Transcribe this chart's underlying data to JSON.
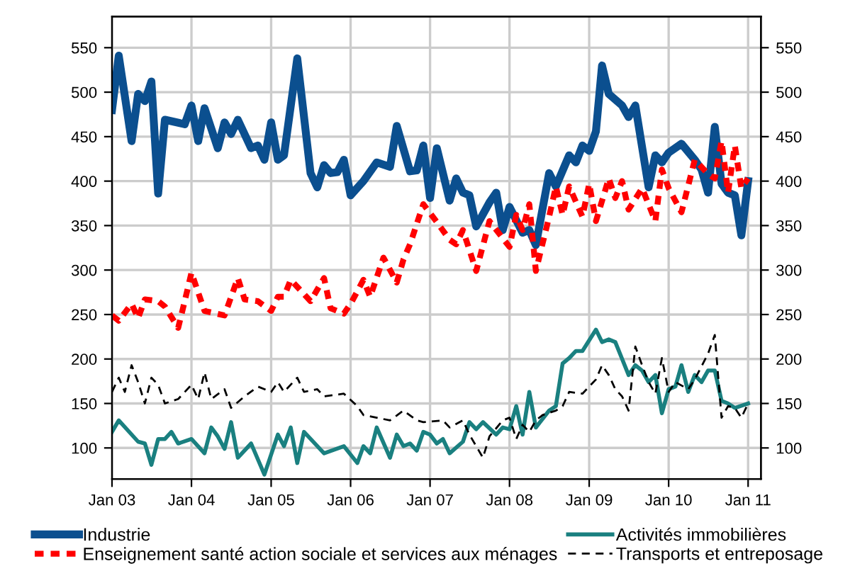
{
  "chart_data": {
    "type": "line",
    "xlim": [
      "2003-01-01",
      "2011-03-01"
    ],
    "xticks": [
      {
        "value": "2003-01-01",
        "label": "Jan 03"
      },
      {
        "value": "2004-01-01",
        "label": "Jan 04"
      },
      {
        "value": "2005-01-01",
        "label": "Jan 05"
      },
      {
        "value": "2006-01-01",
        "label": "Jan 06"
      },
      {
        "value": "2007-01-01",
        "label": "Jan 07"
      },
      {
        "value": "2008-01-01",
        "label": "Jan 08"
      },
      {
        "value": "2009-01-01",
        "label": "Jan 09"
      },
      {
        "value": "2010-01-01",
        "label": "Jan 10"
      },
      {
        "value": "2011-01-01",
        "label": "Jan 11"
      }
    ],
    "ylim": [
      65,
      585
    ],
    "yticks": [
      100,
      150,
      200,
      250,
      300,
      350,
      400,
      450,
      500,
      550
    ],
    "y2lim": [
      65,
      585
    ],
    "y2ticks": [
      100,
      150,
      200,
      250,
      300,
      350,
      400,
      450,
      500,
      550
    ],
    "grid": true,
    "legend": "bottom",
    "marker": "none",
    "series": [
      {
        "name": "Industrie",
        "color": "#0b4f8f",
        "line_style": "solid",
        "x": [
          "2003-01",
          "2003-02",
          "2003-04",
          "2003-05",
          "2003-06",
          "2003-07",
          "2003-08",
          "2003-09",
          "2003-12",
          "2004-01",
          "2004-02",
          "2004-03",
          "2004-05",
          "2004-06",
          "2004-07",
          "2004-08",
          "2004-10",
          "2004-11",
          "2004-12",
          "2005-01",
          "2005-02",
          "2005-03",
          "2005-05",
          "2005-07",
          "2005-08",
          "2005-09",
          "2005-10",
          "2005-11",
          "2005-12",
          "2006-01",
          "2006-03",
          "2006-05",
          "2006-07",
          "2006-08",
          "2006-10",
          "2006-11",
          "2006-12",
          "2007-01",
          "2007-02",
          "2007-04",
          "2007-05",
          "2007-06",
          "2007-07",
          "2007-08",
          "2007-10",
          "2007-11",
          "2007-12",
          "2008-01",
          "2008-03",
          "2008-04",
          "2008-05",
          "2008-07",
          "2008-08",
          "2008-10",
          "2008-11",
          "2008-12",
          "2009-01",
          "2009-02",
          "2009-03",
          "2009-04",
          "2009-06",
          "2009-07",
          "2009-08",
          "2009-10",
          "2009-11",
          "2009-12",
          "2010-01",
          "2010-03",
          "2010-05",
          "2010-06",
          "2010-07",
          "2010-08",
          "2010-09",
          "2010-10",
          "2010-11",
          "2010-12",
          "2011-01"
        ],
        "values": [
          480,
          541,
          445,
          498,
          490,
          512,
          386,
          469,
          464,
          485,
          445,
          482,
          437,
          466,
          453,
          469,
          437,
          440,
          424,
          466,
          424,
          429,
          538,
          409,
          393,
          418,
          409,
          410,
          424,
          384,
          400,
          421,
          416,
          462,
          411,
          412,
          440,
          381,
          437,
          378,
          403,
          387,
          384,
          349,
          376,
          387,
          345,
          371,
          342,
          345,
          328,
          409,
          394,
          429,
          421,
          440,
          434,
          456,
          530,
          498,
          485,
          472,
          485,
          393,
          429,
          421,
          432,
          442,
          424,
          413,
          387,
          461,
          397,
          387,
          384,
          339,
          400
        ]
      },
      {
        "name": "Enseignement santé action sociale et services aux ménages",
        "color": "#ff0000",
        "line_style": "dotted",
        "x": [
          "2003-01",
          "2003-02",
          "2003-04",
          "2003-05",
          "2003-06",
          "2003-08",
          "2003-09",
          "2003-11",
          "2003-12",
          "2004-01",
          "2004-03",
          "2004-06",
          "2004-08",
          "2004-09",
          "2004-11",
          "2005-01",
          "2005-02",
          "2005-03",
          "2005-04",
          "2005-07",
          "2005-09",
          "2005-10",
          "2005-12",
          "2006-01",
          "2006-03",
          "2006-04",
          "2006-06",
          "2006-08",
          "2006-09",
          "2006-10",
          "2006-12",
          "2007-02",
          "2007-04",
          "2007-05",
          "2007-06",
          "2007-08",
          "2007-10",
          "2008-01",
          "2008-02",
          "2008-03",
          "2008-04",
          "2008-05",
          "2008-07",
          "2008-08",
          "2008-09",
          "2008-10",
          "2008-12",
          "2009-01",
          "2009-02",
          "2009-04",
          "2009-05",
          "2009-06",
          "2009-07",
          "2009-09",
          "2009-11",
          "2009-12",
          "2010-01",
          "2010-03",
          "2010-05",
          "2010-07",
          "2010-08",
          "2010-09",
          "2010-10",
          "2010-11",
          "2010-12",
          "2011-01"
        ],
        "values": [
          249,
          243,
          262,
          246,
          267,
          265,
          259,
          235,
          265,
          297,
          254,
          249,
          291,
          267,
          265,
          254,
          270,
          270,
          289,
          265,
          291,
          257,
          251,
          262,
          289,
          270,
          314,
          286,
          312,
          329,
          374,
          354,
          334,
          329,
          345,
          299,
          355,
          326,
          362,
          345,
          374,
          299,
          360,
          394,
          362,
          394,
          360,
          397,
          355,
          403,
          381,
          400,
          368,
          392,
          355,
          413,
          392,
          365,
          424,
          408,
          403,
          445,
          387,
          440,
          392,
          403
        ]
      },
      {
        "name": "Activités immobilières",
        "color": "#1a8080",
        "line_style": "solid",
        "x": [
          "2003-01",
          "2003-02",
          "2003-05",
          "2003-06",
          "2003-07",
          "2003-08",
          "2003-09",
          "2003-10",
          "2003-11",
          "2004-01",
          "2004-03",
          "2004-04",
          "2004-05",
          "2004-06",
          "2004-07",
          "2004-08",
          "2004-10",
          "2004-12",
          "2005-02",
          "2005-03",
          "2005-04",
          "2005-05",
          "2005-06",
          "2005-09",
          "2005-12",
          "2006-02",
          "2006-03",
          "2006-04",
          "2006-05",
          "2006-07",
          "2006-08",
          "2006-09",
          "2006-10",
          "2006-11",
          "2006-12",
          "2007-01",
          "2007-02",
          "2007-03",
          "2007-04",
          "2007-06",
          "2007-07",
          "2007-08",
          "2007-09",
          "2007-11",
          "2007-12",
          "2008-01",
          "2008-02",
          "2008-03",
          "2008-04",
          "2008-05",
          "2008-07",
          "2008-08",
          "2008-09",
          "2008-10",
          "2008-11",
          "2008-12",
          "2009-02",
          "2009-03",
          "2009-04",
          "2009-05",
          "2009-07",
          "2009-08",
          "2009-09",
          "2009-10",
          "2009-11",
          "2009-12",
          "2010-01",
          "2010-02",
          "2010-03",
          "2010-04",
          "2010-05",
          "2010-06",
          "2010-07",
          "2010-08",
          "2010-09",
          "2010-10",
          "2010-11",
          "2011-01"
        ],
        "values": [
          118,
          131,
          107,
          105,
          81,
          110,
          110,
          118,
          105,
          110,
          94,
          123,
          113,
          99,
          129,
          89,
          105,
          70,
          115,
          102,
          123,
          83,
          118,
          94,
          102,
          83,
          102,
          94,
          123,
          89,
          115,
          102,
          105,
          97,
          118,
          115,
          105,
          110,
          94,
          107,
          129,
          121,
          129,
          115,
          123,
          121,
          147,
          115,
          163,
          123,
          142,
          147,
          195,
          201,
          209,
          209,
          233,
          219,
          222,
          219,
          182,
          193,
          187,
          174,
          182,
          139,
          166,
          169,
          193,
          163,
          182,
          174,
          187,
          187,
          153,
          150,
          145,
          150
        ]
      },
      {
        "name": "Transports et entreposage",
        "color": "#000000",
        "line_style": "dashed",
        "x": [
          "2003-01",
          "2003-02",
          "2003-03",
          "2003-04",
          "2003-05",
          "2003-06",
          "2003-07",
          "2003-08",
          "2003-09",
          "2003-11",
          "2004-01",
          "2004-02",
          "2004-03",
          "2004-04",
          "2004-06",
          "2004-07",
          "2004-09",
          "2004-11",
          "2005-01",
          "2005-02",
          "2005-03",
          "2005-05",
          "2005-06",
          "2005-08",
          "2005-09",
          "2005-12",
          "2006-02",
          "2006-03",
          "2006-05",
          "2006-07",
          "2006-09",
          "2006-11",
          "2006-12",
          "2007-03",
          "2007-04",
          "2007-06",
          "2007-07",
          "2007-09",
          "2007-10",
          "2007-12",
          "2008-01",
          "2008-02",
          "2008-03",
          "2008-04",
          "2008-05",
          "2008-06",
          "2008-08",
          "2008-09",
          "2008-10",
          "2008-12",
          "2009-02",
          "2009-03",
          "2009-04",
          "2009-05",
          "2009-06",
          "2009-07",
          "2009-08",
          "2009-09",
          "2009-10",
          "2009-11",
          "2009-12",
          "2010-01",
          "2010-02",
          "2010-04",
          "2010-05",
          "2010-07",
          "2010-08",
          "2010-09",
          "2010-10",
          "2010-11",
          "2010-12",
          "2011-01"
        ],
        "values": [
          163,
          179,
          163,
          193,
          174,
          150,
          179,
          171,
          150,
          155,
          171,
          155,
          185,
          155,
          166,
          145,
          158,
          169,
          163,
          174,
          163,
          179,
          163,
          166,
          158,
          161,
          147,
          137,
          134,
          131,
          142,
          131,
          129,
          131,
          123,
          131,
          115,
          89,
          113,
          131,
          134,
          110,
          126,
          118,
          131,
          137,
          142,
          147,
          163,
          161,
          177,
          193,
          182,
          166,
          158,
          142,
          214,
          193,
          174,
          161,
          201,
          163,
          174,
          166,
          177,
          206,
          227,
          134,
          147,
          145,
          134,
          150
        ]
      }
    ]
  }
}
